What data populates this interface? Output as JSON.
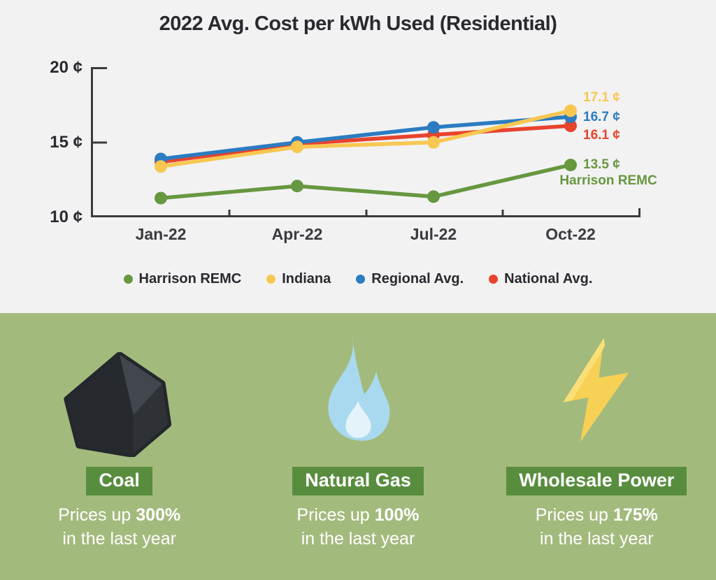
{
  "title": "2022 Avg. Cost per kWh Used (Residential)",
  "chart_data": {
    "type": "line",
    "x": [
      "Jan-22",
      "Apr-22",
      "Jul-22",
      "Oct-22"
    ],
    "y_ticks": [
      "20 ¢",
      "15 ¢",
      "10 ¢"
    ],
    "ylim": [
      10,
      20
    ],
    "grid": false,
    "legend_position": "bottom",
    "series": [
      {
        "name": "Harrison REMC",
        "color": "#67973F",
        "values": [
          11.3,
          12.1,
          11.4,
          13.5
        ],
        "end_label": "13.5 ¢",
        "end_sublabel": "Harrison REMC"
      },
      {
        "name": "Indiana",
        "color": "#F8C751",
        "values": [
          13.4,
          14.7,
          15.0,
          17.1
        ],
        "end_label": "17.1 ¢"
      },
      {
        "name": "Regional Avg.",
        "color": "#2B7CC1",
        "values": [
          13.9,
          15.0,
          16.0,
          16.7
        ],
        "end_label": "16.7 ¢"
      },
      {
        "name": "National Avg.",
        "color": "#E8432D",
        "values": [
          13.7,
          14.9,
          15.5,
          16.1
        ],
        "end_label": "16.1 ¢"
      }
    ]
  },
  "stat_cards": [
    {
      "icon": "coal-icon",
      "badge": "Coal",
      "line1_prefix": "Prices up ",
      "line1_value": "300%",
      "line2": "in the last year"
    },
    {
      "icon": "flame-icon",
      "badge": "Natural Gas",
      "line1_prefix": "Prices up ",
      "line1_value": "100%",
      "line2": "in the last year"
    },
    {
      "icon": "lightning-icon",
      "badge": "Wholesale Power",
      "line1_prefix": "Prices up ",
      "line1_value": "175%",
      "line2": "in the last year"
    }
  ],
  "colors": {
    "top_bg": "#F2F2F3",
    "bottom_bg": "#A3BA7D",
    "badge_bg": "#588D3E",
    "axis": "#3B3B3B",
    "harrison_green": "#67973F",
    "indiana_yellow": "#F8C751",
    "regional_blue": "#2B7CC1",
    "national_red": "#E8432D",
    "coal_dark": "#24272B",
    "flame_blue": "#A9D9EF",
    "bolt_yellow": "#F7D155"
  }
}
